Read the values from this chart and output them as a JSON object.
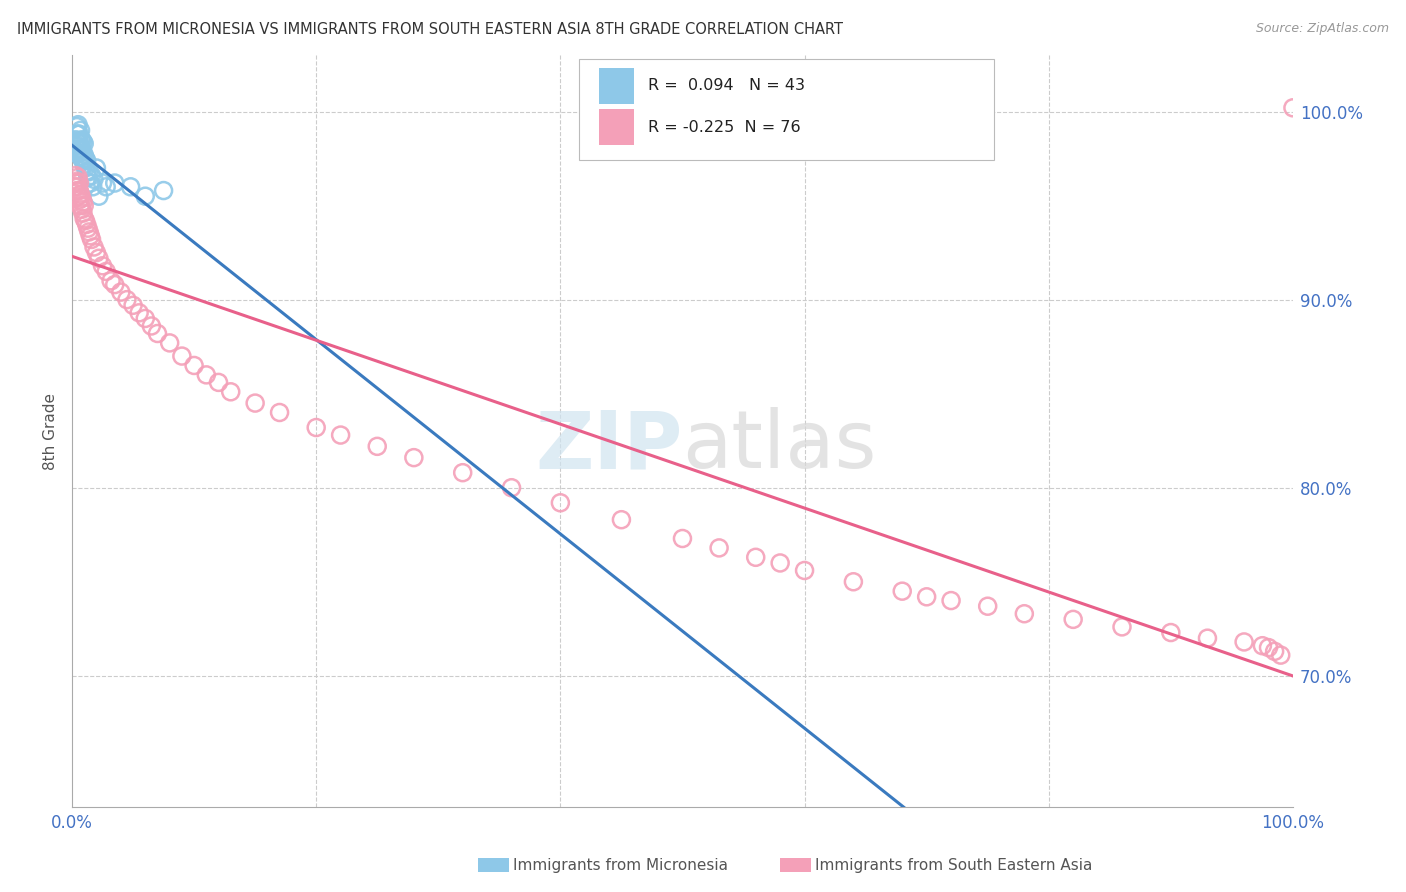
{
  "title": "IMMIGRANTS FROM MICRONESIA VS IMMIGRANTS FROM SOUTH EASTERN ASIA 8TH GRADE CORRELATION CHART",
  "source": "Source: ZipAtlas.com",
  "ylabel": "8th Grade",
  "legend_label1": "Immigrants from Micronesia",
  "legend_label2": "Immigrants from South Eastern Asia",
  "r1": 0.094,
  "n1": 43,
  "r2": -0.225,
  "n2": 76,
  "color_blue": "#8ec8e8",
  "color_pink": "#f4a0b8",
  "color_line_blue": "#3a7abf",
  "color_line_pink": "#e8608a",
  "color_title": "#333333",
  "color_source": "#999999",
  "color_axis": "#4472C4",
  "color_grid": "#cccccc",
  "xlim": [
    0.0,
    1.0
  ],
  "ylim": [
    0.63,
    1.03
  ],
  "yticks": [
    0.7,
    0.8,
    0.9,
    1.0
  ],
  "ytick_labels": [
    "70.0%",
    "80.0%",
    "90.0%",
    "100.0%"
  ],
  "blue_x": [
    0.003,
    0.003,
    0.004,
    0.004,
    0.004,
    0.005,
    0.005,
    0.005,
    0.005,
    0.006,
    0.006,
    0.006,
    0.007,
    0.007,
    0.007,
    0.007,
    0.008,
    0.008,
    0.008,
    0.009,
    0.009,
    0.009,
    0.01,
    0.01,
    0.01,
    0.011,
    0.011,
    0.012,
    0.012,
    0.013,
    0.014,
    0.015,
    0.016,
    0.017,
    0.018,
    0.02,
    0.022,
    0.025,
    0.028,
    0.035,
    0.048,
    0.06,
    0.075
  ],
  "blue_y": [
    0.985,
    0.978,
    0.982,
    0.988,
    0.992,
    0.98,
    0.984,
    0.988,
    0.993,
    0.978,
    0.983,
    0.988,
    0.976,
    0.98,
    0.984,
    0.99,
    0.975,
    0.98,
    0.985,
    0.974,
    0.978,
    0.984,
    0.972,
    0.977,
    0.983,
    0.97,
    0.975,
    0.968,
    0.974,
    0.965,
    0.968,
    0.962,
    0.966,
    0.96,
    0.964,
    0.97,
    0.955,
    0.962,
    0.96,
    0.962,
    0.96,
    0.955,
    0.958
  ],
  "pink_x": [
    0.002,
    0.003,
    0.003,
    0.004,
    0.004,
    0.005,
    0.005,
    0.005,
    0.006,
    0.006,
    0.006,
    0.007,
    0.007,
    0.008,
    0.008,
    0.009,
    0.009,
    0.01,
    0.01,
    0.011,
    0.012,
    0.013,
    0.014,
    0.015,
    0.016,
    0.018,
    0.02,
    0.022,
    0.025,
    0.028,
    0.032,
    0.035,
    0.04,
    0.045,
    0.05,
    0.055,
    0.06,
    0.065,
    0.07,
    0.08,
    0.09,
    0.1,
    0.11,
    0.12,
    0.13,
    0.15,
    0.17,
    0.2,
    0.22,
    0.25,
    0.28,
    0.32,
    0.36,
    0.4,
    0.45,
    0.5,
    0.53,
    0.56,
    0.58,
    0.6,
    0.64,
    0.68,
    0.7,
    0.72,
    0.75,
    0.78,
    0.82,
    0.86,
    0.9,
    0.93,
    0.96,
    0.975,
    0.98,
    0.985,
    0.99,
    1.0
  ],
  "pink_y": [
    0.96,
    0.962,
    0.966,
    0.958,
    0.963,
    0.955,
    0.96,
    0.965,
    0.953,
    0.958,
    0.962,
    0.95,
    0.956,
    0.948,
    0.954,
    0.946,
    0.952,
    0.943,
    0.95,
    0.942,
    0.94,
    0.938,
    0.936,
    0.934,
    0.932,
    0.928,
    0.925,
    0.922,
    0.918,
    0.915,
    0.91,
    0.908,
    0.904,
    0.9,
    0.897,
    0.893,
    0.89,
    0.886,
    0.882,
    0.877,
    0.87,
    0.865,
    0.86,
    0.856,
    0.851,
    0.845,
    0.84,
    0.832,
    0.828,
    0.822,
    0.816,
    0.808,
    0.8,
    0.792,
    0.783,
    0.773,
    0.768,
    0.763,
    0.76,
    0.756,
    0.75,
    0.745,
    0.742,
    0.74,
    0.737,
    0.733,
    0.73,
    0.726,
    0.723,
    0.72,
    0.718,
    0.716,
    0.715,
    0.713,
    0.711,
    1.002
  ],
  "line_blue_x0": 0.0,
  "line_blue_x1": 1.0,
  "line_pink_x0": 0.0,
  "line_pink_x1": 1.0
}
